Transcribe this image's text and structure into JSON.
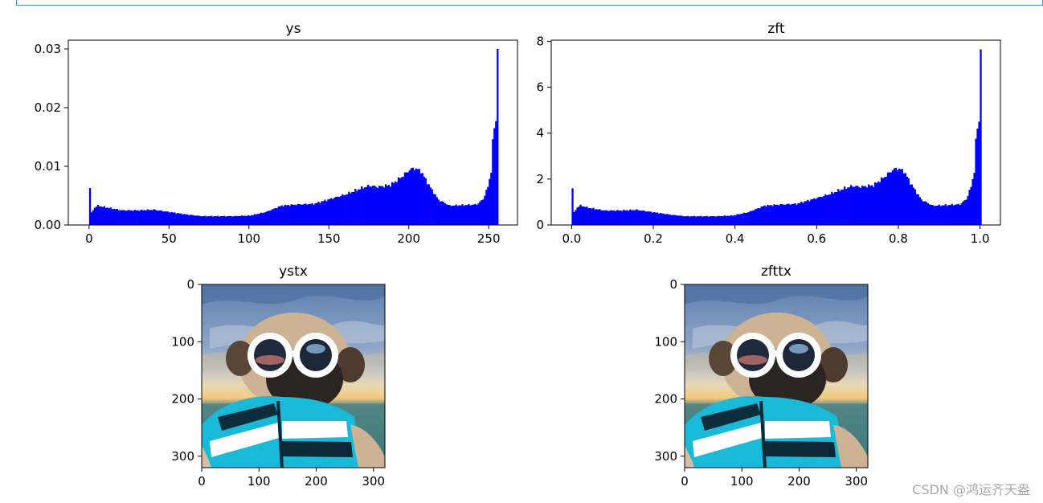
{
  "figure": {
    "watermark": "CSDN @鸿运齐天盎"
  },
  "chart_data": [
    {
      "type": "bar",
      "title": "ys",
      "xlabel": "",
      "ylabel": "",
      "xlim": [
        -13,
        268
      ],
      "ylim": [
        0,
        0.0315
      ],
      "xticks": [
        0,
        50,
        100,
        150,
        200,
        250
      ],
      "yticks": [
        0.0,
        0.01,
        0.02,
        0.03
      ],
      "ytick_labels": [
        "0.00",
        "0.01",
        "0.02",
        "0.03"
      ],
      "bin_start": 0,
      "bin_width": 1,
      "color": "#0000ff",
      "keypoints": [
        [
          0,
          0.0063
        ],
        [
          1,
          0.0021
        ],
        [
          3,
          0.003
        ],
        [
          5,
          0.0033
        ],
        [
          10,
          0.003
        ],
        [
          20,
          0.0025
        ],
        [
          30,
          0.0025
        ],
        [
          40,
          0.0026
        ],
        [
          50,
          0.0022
        ],
        [
          60,
          0.0018
        ],
        [
          70,
          0.0015
        ],
        [
          80,
          0.0015
        ],
        [
          90,
          0.0015
        ],
        [
          100,
          0.0016
        ],
        [
          110,
          0.0022
        ],
        [
          120,
          0.0033
        ],
        [
          130,
          0.0035
        ],
        [
          140,
          0.0036
        ],
        [
          150,
          0.0044
        ],
        [
          160,
          0.0052
        ],
        [
          170,
          0.0063
        ],
        [
          175,
          0.0067
        ],
        [
          180,
          0.0065
        ],
        [
          188,
          0.0068
        ],
        [
          195,
          0.0082
        ],
        [
          200,
          0.0094
        ],
        [
          203,
          0.0097
        ],
        [
          207,
          0.0092
        ],
        [
          212,
          0.0068
        ],
        [
          218,
          0.0043
        ],
        [
          225,
          0.0033
        ],
        [
          235,
          0.0034
        ],
        [
          242,
          0.0035
        ],
        [
          246,
          0.0044
        ],
        [
          249,
          0.0065
        ],
        [
          251,
          0.0092
        ],
        [
          252,
          0.014
        ],
        [
          253,
          0.0165
        ],
        [
          254,
          0.0177
        ],
        [
          255,
          0.03
        ]
      ]
    },
    {
      "type": "bar",
      "title": "zft",
      "xlabel": "",
      "ylabel": "",
      "xlim": [
        -0.05,
        1.05
      ],
      "ylim": [
        0,
        8.05
      ],
      "xticks": [
        0.0,
        0.2,
        0.4,
        0.6,
        0.8,
        1.0
      ],
      "xtick_labels": [
        "0.0",
        "0.2",
        "0.4",
        "0.6",
        "0.8",
        "1.0"
      ],
      "yticks": [
        0,
        2,
        4,
        6,
        8
      ],
      "bin_start": 0,
      "bin_width": 0.00392,
      "color": "#0000ff",
      "keypoints": [
        [
          0,
          1.6
        ],
        [
          1,
          0.55
        ],
        [
          3,
          0.77
        ],
        [
          5,
          0.85
        ],
        [
          10,
          0.75
        ],
        [
          20,
          0.63
        ],
        [
          30,
          0.63
        ],
        [
          40,
          0.66
        ],
        [
          50,
          0.56
        ],
        [
          60,
          0.46
        ],
        [
          70,
          0.38
        ],
        [
          80,
          0.38
        ],
        [
          90,
          0.38
        ],
        [
          100,
          0.41
        ],
        [
          110,
          0.56
        ],
        [
          120,
          0.84
        ],
        [
          130,
          0.89
        ],
        [
          140,
          0.92
        ],
        [
          150,
          1.12
        ],
        [
          160,
          1.33
        ],
        [
          170,
          1.6
        ],
        [
          175,
          1.7
        ],
        [
          180,
          1.66
        ],
        [
          188,
          1.73
        ],
        [
          195,
          2.1
        ],
        [
          200,
          2.4
        ],
        [
          203,
          2.47
        ],
        [
          207,
          2.35
        ],
        [
          212,
          1.73
        ],
        [
          218,
          1.1
        ],
        [
          225,
          0.84
        ],
        [
          235,
          0.87
        ],
        [
          242,
          0.9
        ],
        [
          246,
          1.12
        ],
        [
          249,
          1.66
        ],
        [
          251,
          2.35
        ],
        [
          252,
          3.6
        ],
        [
          253,
          4.2
        ],
        [
          254,
          4.5
        ],
        [
          255,
          7.65
        ]
      ]
    },
    {
      "type": "image",
      "title": "ystx",
      "xticks": [
        0,
        100,
        200,
        300
      ],
      "yticks": [
        0,
        100,
        200,
        300
      ],
      "extent": [
        0,
        320,
        320,
        0
      ],
      "image_description": "pug wearing white sunglasses and a striped teal shirt in front of the sea"
    },
    {
      "type": "image",
      "title": "zfttx",
      "xticks": [
        0,
        100,
        200,
        300
      ],
      "yticks": [
        0,
        100,
        200,
        300
      ],
      "extent": [
        0,
        320,
        320,
        0
      ],
      "image_description": "pug wearing white sunglasses and a striped teal shirt in front of the sea"
    }
  ]
}
